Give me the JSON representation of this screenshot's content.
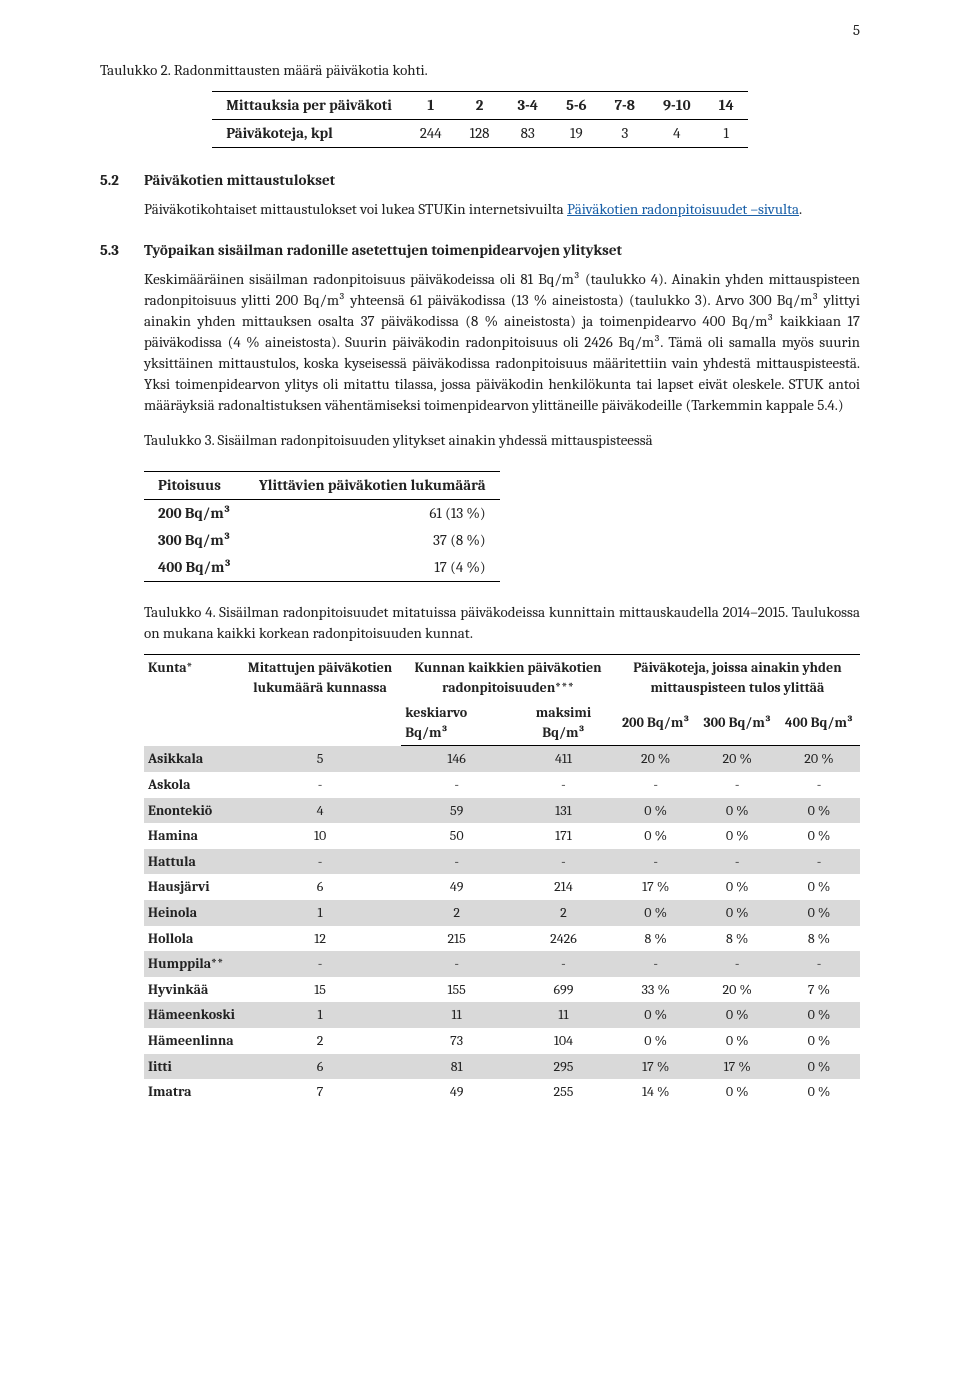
{
  "page_number": "5",
  "caption_t2": "Taulukko 2. Radonmittausten määrä päiväkotia kohti.",
  "table2": {
    "head_row_label": "Mittauksia per päiväkoti",
    "head_values": [
      "1",
      "2",
      "3-4",
      "5-6",
      "7-8",
      "9-10",
      "14"
    ],
    "row_label": "Päiväkoteja, kpl",
    "row_values": [
      "244",
      "128",
      "83",
      "19",
      "3",
      "4",
      "1"
    ]
  },
  "s52": {
    "num": "5.2",
    "title": "Päiväkotien mittaustulokset",
    "para_a": "Päiväkotikohtaiset mittaustulokset voi lukea STUKin internetsivuilta ",
    "link_text": "Päiväkotien radonpitoisuudet –sivulta",
    "para_b": "."
  },
  "s53": {
    "num": "5.3",
    "title": "Työpaikan sisäilman radonille asetettujen toimenpidearvojen ylitykset",
    "para1": "Keskimääräinen sisäilman radonpitoisuus päiväkodeissa oli 81 Bq/m³ (taulukko 4). Ainakin yhden mittauspisteen radonpitoisuus ylitti 200 Bq/m³ yhteensä 61 päiväkodissa (13 % aineistosta) (taulukko 3). Arvo 300 Bq/m³ ylittyi ainakin yhden mittauksen osalta 37 päiväkodissa (8 % aineistosta) ja toimenpidearvo 400 Bq/m³ kaikkiaan 17 päiväkodissa (4 % aineistosta). Suurin päiväkodin radonpitoisuus oli 2426 Bq/m³. Tämä oli samalla myös suurin yksittäinen mittaustulos, koska kyseisessä päiväkodissa radonpitoisuus määritettiin vain yhdestä mittauspisteestä. Yksi toimenpidearvon ylitys oli mitattu tilassa, jossa päiväkodin henkilökunta tai lapset eivät oleskele. STUK antoi määräyksiä radonaltistuksen vähentämiseksi toimenpidearvon ylittäneille päiväkodeille (Tarkemmin kappale 5.4.)"
  },
  "caption_t3": "Taulukko 3. Sisäilman radonpitoisuuden ylitykset ainakin yhdessä mittauspisteessä",
  "table3": {
    "h1": "Pitoisuus",
    "h2": "Ylittävien päiväkotien lukumäärä",
    "rows": [
      [
        "200 Bq/m³",
        "61 (13 %)"
      ],
      [
        "300 Bq/m³",
        "37 (8 %)"
      ],
      [
        "400 Bq/m³",
        "17 (4 %)"
      ]
    ]
  },
  "caption_t4": "Taulukko 4. Sisäilman radonpitoisuudet mitatuissa päiväkodeissa kunnittain mittauskaudella 2014–2015. Taulukossa on mukana kaikki korkean radonpitoisuuden kunnat.",
  "table4": {
    "header_top": {
      "c1": "Kunta*",
      "c2": "Mitattujen päiväkotien lukumäärä kunnassa",
      "c3": "Kunnan kaikkien päiväkotien radonpitoisuuden***",
      "c4": "Päiväkoteja, joissa ainakin yhden mittauspisteen tulos ylittää"
    },
    "header_bottom": {
      "c3a": "keskiarvo Bq/m³",
      "c3b": "maksimi Bq/m³",
      "c4a": "200 Bq/m³",
      "c4b": "300 Bq/m³",
      "c4c": "400 Bq/m³"
    },
    "rows": [
      [
        "Asikkala",
        "5",
        "146",
        "411",
        "20 %",
        "20 %",
        "20 %"
      ],
      [
        "Askola",
        "-",
        "-",
        "-",
        "-",
        "-",
        "-"
      ],
      [
        "Enontekiö",
        "4",
        "59",
        "131",
        "0 %",
        "0 %",
        "0 %"
      ],
      [
        "Hamina",
        "10",
        "50",
        "171",
        "0 %",
        "0 %",
        "0 %"
      ],
      [
        "Hattula",
        "-",
        "-",
        "-",
        "-",
        "-",
        "-"
      ],
      [
        "Hausjärvi",
        "6",
        "49",
        "214",
        "17 %",
        "0 %",
        "0 %"
      ],
      [
        "Heinola",
        "1",
        "2",
        "2",
        "0 %",
        "0 %",
        "0 %"
      ],
      [
        "Hollola",
        "12",
        "215",
        "2426",
        "8 %",
        "8 %",
        "8 %"
      ],
      [
        "Humppila**",
        "-",
        "-",
        "-",
        "-",
        "-",
        "-"
      ],
      [
        "Hyvinkää",
        "15",
        "155",
        "699",
        "33 %",
        "20 %",
        "7 %"
      ],
      [
        "Hämeenkoski",
        "1",
        "11",
        "11",
        "0 %",
        "0 %",
        "0 %"
      ],
      [
        "Hämeenlinna",
        "2",
        "73",
        "104",
        "0 %",
        "0 %",
        "0 %"
      ],
      [
        "Iitti",
        "6",
        "81",
        "295",
        "17 %",
        "17 %",
        "0 %"
      ],
      [
        "Imatra",
        "7",
        "49",
        "255",
        "14 %",
        "0 %",
        "0 %"
      ]
    ]
  }
}
